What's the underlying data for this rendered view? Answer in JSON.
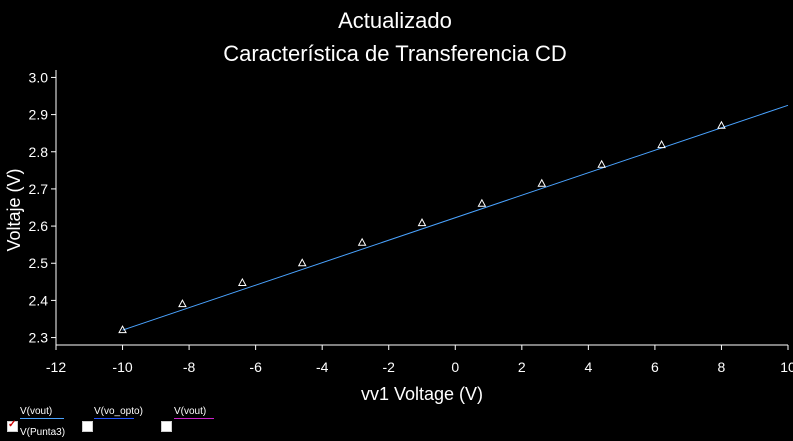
{
  "chart_data": {
    "type": "line",
    "title_line1": "Actualizado",
    "title_line2": "Característica de Transferencia CD",
    "xlabel": "vv1 Voltage (V)",
    "ylabel": "Voltaje (V)",
    "xlim": [
      -12,
      10
    ],
    "ylim": [
      2.28,
      3.02
    ],
    "x_ticks": [
      -12,
      -10,
      -8,
      -6,
      -4,
      -2,
      0,
      2,
      4,
      6,
      8,
      10
    ],
    "x_tick_labels": [
      "-12",
      "-10",
      "-8",
      "-6",
      "-4",
      "-2",
      "0",
      "2",
      "4",
      "6",
      "8",
      "10"
    ],
    "y_ticks": [
      2.3,
      2.4,
      2.5,
      2.6,
      2.7,
      2.8,
      2.9,
      3.0
    ],
    "y_tick_labels": [
      "2.3",
      "2.4",
      "2.5",
      "2.6",
      "2.7",
      "2.8",
      "2.9",
      "3.0"
    ],
    "line_color": "#4aa3ff",
    "series": [
      {
        "name": "V(vout)",
        "x": [
          -10,
          10
        ],
        "y": [
          2.32,
          2.925
        ]
      }
    ],
    "markers": {
      "x": [
        -10,
        -8.2,
        -6.4,
        -4.6,
        -2.8,
        -1.0,
        0.8,
        2.6,
        4.4,
        6.2,
        8.0
      ],
      "y": [
        2.32,
        2.39,
        2.447,
        2.5,
        2.555,
        2.608,
        2.66,
        2.714,
        2.765,
        2.818,
        2.87
      ]
    }
  },
  "legend": {
    "entries": [
      {
        "label": "V(vout)",
        "color": "#4aa3ff",
        "checked": true,
        "sub_label": "V(Punta3)"
      },
      {
        "label": "V(vo_opto)",
        "color": "#2255ff",
        "checked": false
      },
      {
        "label": "V(vout)",
        "color": "#cc22cc",
        "checked": false
      }
    ]
  }
}
